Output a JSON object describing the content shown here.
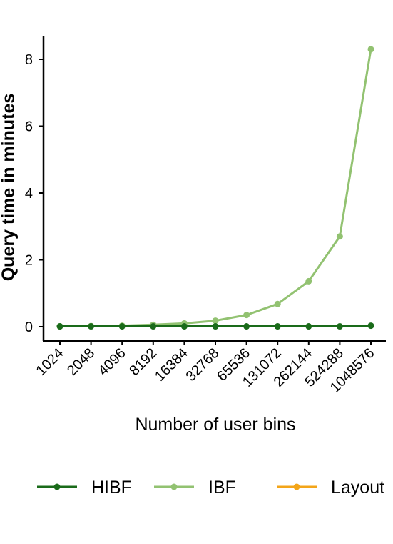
{
  "chart_data": {
    "type": "line",
    "title": "",
    "xlabel": "Number of user bins",
    "ylabel": "Query time in minutes",
    "categories": [
      "1024",
      "2048",
      "4096",
      "8192",
      "16384",
      "32768",
      "65536",
      "131072",
      "262144",
      "524288",
      "1048576"
    ],
    "ylim": [
      -0.4,
      8.7
    ],
    "yticks": [
      0,
      2,
      4,
      6,
      8
    ],
    "grid": false,
    "legend_position": "bottom",
    "series": [
      {
        "name": "HIBF",
        "color": "#1a6b1a",
        "values": [
          0.01,
          0.01,
          0.01,
          0.01,
          0.01,
          0.01,
          0.01,
          0.01,
          0.01,
          0.01,
          0.03
        ]
      },
      {
        "name": "IBF",
        "color": "#92c271",
        "values": [
          0.01,
          0.02,
          0.03,
          0.06,
          0.1,
          0.18,
          0.35,
          0.68,
          1.36,
          2.7,
          8.3
        ]
      },
      {
        "name": "Layout",
        "color": "#f3a519",
        "values": [
          0,
          0,
          0,
          0,
          0,
          0,
          0,
          0,
          0,
          0,
          0
        ]
      }
    ]
  }
}
